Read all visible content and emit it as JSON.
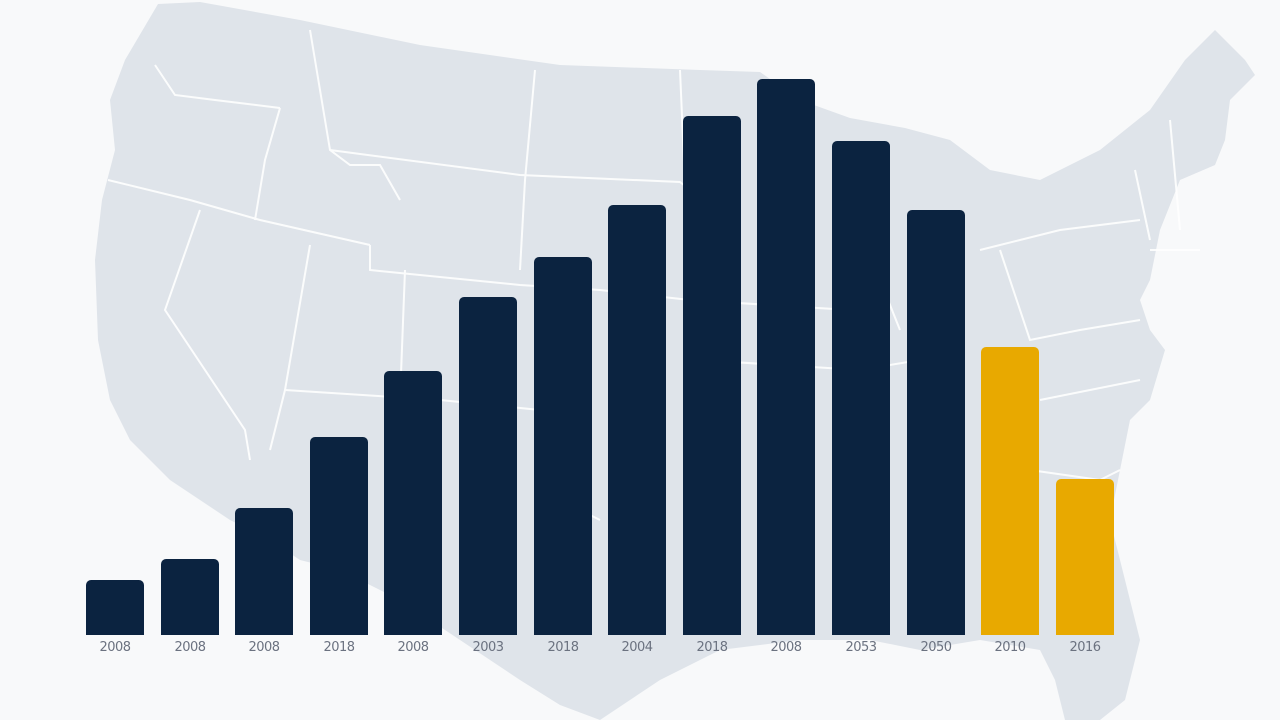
{
  "colors": {
    "background": "#f8f9fa",
    "map_fill": "#dfe4ea",
    "map_border": "#ffffff",
    "bar_primary": "#0b2340",
    "bar_highlight": "#e8a900",
    "label": "#6b7280"
  },
  "background": {
    "type": "map",
    "subject": "United States (contiguous) outline with state borders"
  },
  "chart_data": {
    "type": "bar",
    "title": "",
    "xlabel": "",
    "ylabel": "",
    "grid": false,
    "legend": null,
    "y_axis_visible": false,
    "categories": [
      "2008",
      "2008",
      "2008",
      "2018",
      "2008",
      "2003",
      "2018",
      "2004",
      "2018",
      "2008",
      "2053",
      "2050",
      "2010",
      "2016"
    ],
    "values": [
      55,
      76,
      127,
      198,
      264,
      338,
      378,
      430,
      519,
      556,
      494,
      425,
      288,
      156
    ],
    "value_units": "relative pixel height (no y-axis shown)",
    "bar_colors": [
      "navy",
      "navy",
      "navy",
      "navy",
      "navy",
      "navy",
      "navy",
      "navy",
      "navy",
      "navy",
      "navy",
      "navy",
      "gold",
      "gold"
    ],
    "ylim": [
      0,
      600
    ],
    "note": "X-axis tick labels are illegible/garbled in the image; transcribed approximately"
  }
}
